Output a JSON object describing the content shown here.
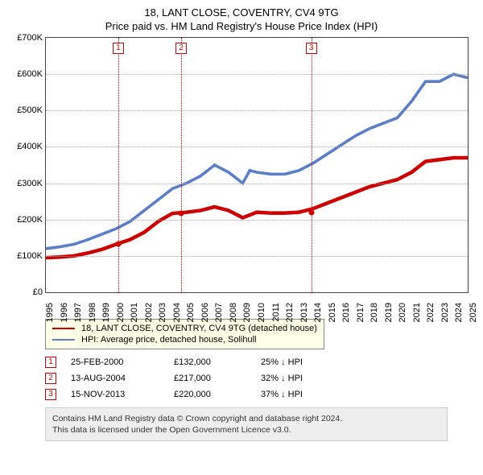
{
  "title": {
    "line1": "18, LANT CLOSE, COVENTRY, CV4 9TG",
    "line2": "Price paid vs. HM Land Registry's House Price Index (HPI)"
  },
  "chart": {
    "type": "line",
    "x_year_min": 1995,
    "x_year_max": 2025,
    "y_min": 0,
    "y_max": 700000,
    "ytick_step": 100000,
    "ytick_labels": [
      "£0",
      "£100K",
      "£200K",
      "£300K",
      "£400K",
      "£500K",
      "£600K",
      "£700K"
    ],
    "x_ticks": [
      1995,
      1996,
      1997,
      1998,
      1999,
      2000,
      2001,
      2002,
      2003,
      2004,
      2005,
      2006,
      2007,
      2008,
      2009,
      2010,
      2011,
      2012,
      2013,
      2014,
      2015,
      2016,
      2017,
      2018,
      2019,
      2020,
      2021,
      2022,
      2023,
      2024,
      2025
    ],
    "grid_color": "#aaaaaa",
    "border_color": "#444444",
    "background": "#ffffff",
    "series": [
      {
        "key": "property",
        "label": "18, LANT CLOSE, COVENTRY, CV4 9TG (detached house)",
        "color": "#cc0000",
        "line_width": 1.5,
        "points": [
          [
            1995,
            95000
          ],
          [
            1996,
            97000
          ],
          [
            1997,
            100000
          ],
          [
            1998,
            108000
          ],
          [
            1999,
            118000
          ],
          [
            2000,
            132000
          ],
          [
            2001,
            145000
          ],
          [
            2002,
            165000
          ],
          [
            2003,
            195000
          ],
          [
            2004,
            217000
          ],
          [
            2005,
            220000
          ],
          [
            2006,
            225000
          ],
          [
            2007,
            235000
          ],
          [
            2008,
            225000
          ],
          [
            2009,
            205000
          ],
          [
            2010,
            220000
          ],
          [
            2011,
            218000
          ],
          [
            2012,
            218000
          ],
          [
            2013,
            220000
          ],
          [
            2014,
            230000
          ],
          [
            2015,
            245000
          ],
          [
            2016,
            260000
          ],
          [
            2017,
            275000
          ],
          [
            2018,
            290000
          ],
          [
            2019,
            300000
          ],
          [
            2020,
            310000
          ],
          [
            2021,
            330000
          ],
          [
            2022,
            360000
          ],
          [
            2023,
            365000
          ],
          [
            2024,
            370000
          ],
          [
            2025,
            370000
          ]
        ]
      },
      {
        "key": "hpi",
        "label": "HPI: Average price, detached house, Solihull",
        "color": "#5b7fc7",
        "line_width": 1.2,
        "points": [
          [
            1995,
            120000
          ],
          [
            1996,
            125000
          ],
          [
            1997,
            132000
          ],
          [
            1998,
            145000
          ],
          [
            1999,
            160000
          ],
          [
            2000,
            175000
          ],
          [
            2001,
            195000
          ],
          [
            2002,
            225000
          ],
          [
            2003,
            255000
          ],
          [
            2004,
            285000
          ],
          [
            2005,
            300000
          ],
          [
            2006,
            320000
          ],
          [
            2007,
            350000
          ],
          [
            2008,
            330000
          ],
          [
            2009,
            300000
          ],
          [
            2009.5,
            335000
          ],
          [
            2010,
            330000
          ],
          [
            2011,
            325000
          ],
          [
            2012,
            325000
          ],
          [
            2013,
            335000
          ],
          [
            2014,
            355000
          ],
          [
            2015,
            380000
          ],
          [
            2016,
            405000
          ],
          [
            2017,
            430000
          ],
          [
            2018,
            450000
          ],
          [
            2019,
            465000
          ],
          [
            2020,
            480000
          ],
          [
            2021,
            525000
          ],
          [
            2022,
            580000
          ],
          [
            2023,
            580000
          ],
          [
            2024,
            600000
          ],
          [
            2025,
            590000
          ]
        ]
      }
    ],
    "markers": [
      {
        "n": "1",
        "year": 2000.15,
        "price": 132000
      },
      {
        "n": "2",
        "year": 2004.62,
        "price": 217000
      },
      {
        "n": "3",
        "year": 2013.87,
        "price": 220000
      }
    ]
  },
  "events": [
    {
      "n": "1",
      "date": "25-FEB-2000",
      "price": "£132,000",
      "hpi": "25% ↓ HPI"
    },
    {
      "n": "2",
      "date": "13-AUG-2004",
      "price": "£217,000",
      "hpi": "32% ↓ HPI"
    },
    {
      "n": "3",
      "date": "15-NOV-2013",
      "price": "£220,000",
      "hpi": "37% ↓ HPI"
    }
  ],
  "footnote": {
    "line1": "Contains HM Land Registry data © Crown copyright and database right 2024.",
    "line2": "This data is licensed under the Open Government Licence v3.0."
  }
}
